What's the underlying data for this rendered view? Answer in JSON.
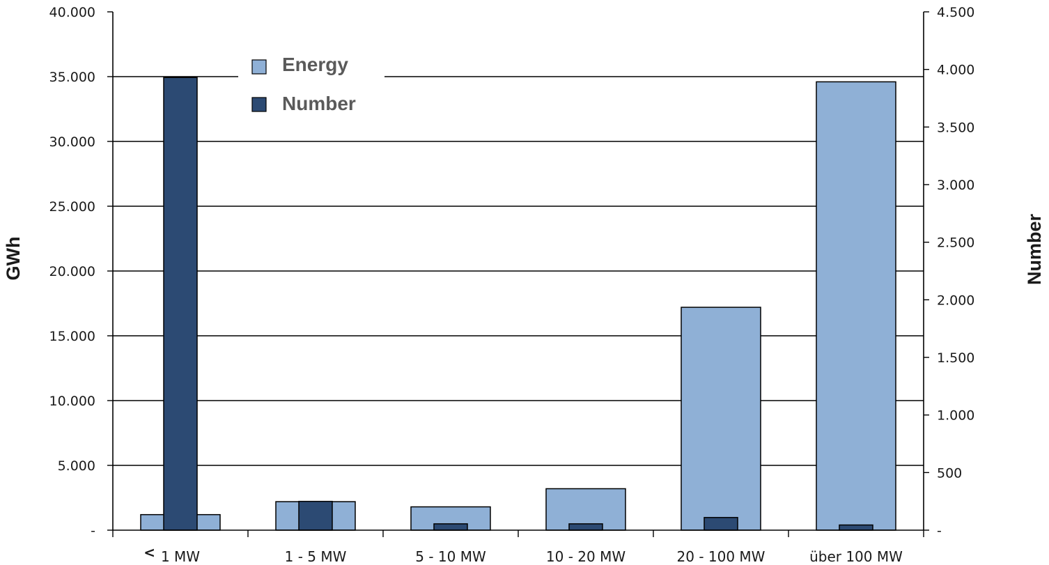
{
  "chart_data": {
    "type": "bar",
    "categories": [
      "< 1 MW",
      "1 - 5 MW",
      "5 - 10 MW",
      "10 - 20 MW",
      "20 - 100 MW",
      "über 100 MW"
    ],
    "category_labels": [
      {
        "prefix": "<",
        "text": "1 MW"
      },
      {
        "prefix": "",
        "text": "1 - 5 MW"
      },
      {
        "prefix": "",
        "text": "5 - 10 MW"
      },
      {
        "prefix": "",
        "text": "10 - 20 MW"
      },
      {
        "prefix": "",
        "text": "20 - 100 MW"
      },
      {
        "prefix": "",
        "text": "über 100 MW"
      }
    ],
    "series": [
      {
        "name": "Energy",
        "axis": "left",
        "color": "#8fb0d6",
        "values": [
          1200,
          2200,
          1800,
          3200,
          17200,
          34600
        ]
      },
      {
        "name": "Number",
        "axis": "right",
        "color": "#2c4a73",
        "values": [
          3930,
          250,
          55,
          55,
          110,
          45
        ]
      }
    ],
    "title": "",
    "ylabel": "GWh",
    "y2label": "Number",
    "ylim": [
      0,
      40000
    ],
    "y2lim": [
      0,
      4500
    ],
    "yticks": [
      "-",
      "5.000",
      "10.000",
      "15.000",
      "20.000",
      "25.000",
      "30.000",
      "35.000",
      "40.000"
    ],
    "y2ticks": [
      "-",
      "500",
      "1.000",
      "1.500",
      "2.000",
      "2.500",
      "3.000",
      "3.500",
      "4.000",
      "4.500"
    ],
    "grid": true,
    "legend_position": "top-left"
  }
}
